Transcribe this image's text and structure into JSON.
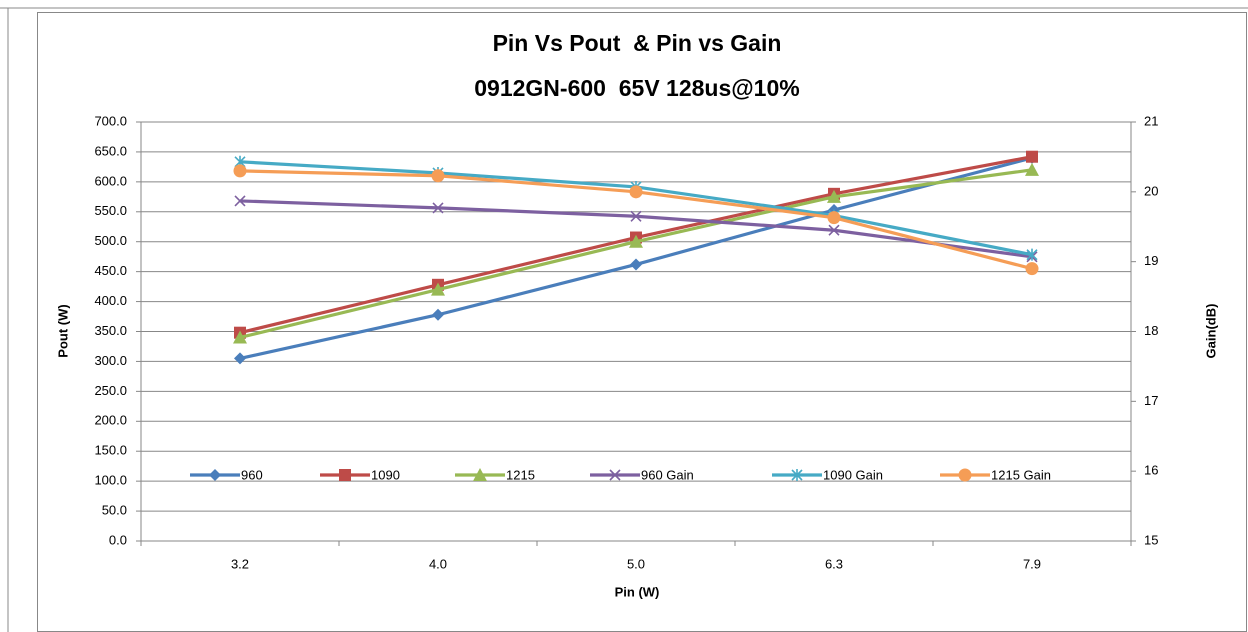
{
  "chart_data": {
    "type": "line",
    "title": "Pin Vs Pout  & Pin vs Gain",
    "subtitle": "0912GN-600  65V 128us@10%",
    "x_label": "Pin (W)",
    "y_label": "Pout (W)",
    "y2_label": "Gain(dB)",
    "categories": [
      "3.2",
      "4.0",
      "5.0",
      "6.3",
      "7.9"
    ],
    "ylim": [
      0,
      700
    ],
    "yticks": [
      {
        "value": 0,
        "label": "0.0"
      },
      {
        "value": 50,
        "label": "50.0"
      },
      {
        "value": 100,
        "label": "100.0"
      },
      {
        "value": 150,
        "label": "150.0"
      },
      {
        "value": 200,
        "label": "200.0"
      },
      {
        "value": 250,
        "label": "250.0"
      },
      {
        "value": 300,
        "label": "300.0"
      },
      {
        "value": 350,
        "label": "350.0"
      },
      {
        "value": 400,
        "label": "400.0"
      },
      {
        "value": 450,
        "label": "450.0"
      },
      {
        "value": 500,
        "label": "500.0"
      },
      {
        "value": 550,
        "label": "550.0"
      },
      {
        "value": 600,
        "label": "600.0"
      },
      {
        "value": 650,
        "label": "650.0"
      },
      {
        "value": 700,
        "label": "700.0"
      }
    ],
    "y2lim": [
      15,
      21
    ],
    "y2ticks": [
      15,
      16,
      17,
      18,
      19,
      20,
      21
    ],
    "grid": true,
    "legend": "inside-bottom",
    "series": [
      {
        "name": "960",
        "color": "#4a7ebb",
        "marker": "diamond",
        "values": [
          305,
          378,
          462,
          553,
          640
        ]
      },
      {
        "name": "1090",
        "color": "#be4b48",
        "marker": "square",
        "values": [
          348,
          428,
          507,
          580,
          642
        ]
      },
      {
        "name": "1215",
        "color": "#98b954",
        "marker": "triangle",
        "values": [
          340,
          420,
          500,
          575,
          620
        ]
      },
      {
        "name": "960 Gain",
        "color": "#7d60a0",
        "marker": "x",
        "axis": "y2",
        "values": [
          19.87,
          19.77,
          19.65,
          19.45,
          19.07
        ]
      },
      {
        "name": "1090 Gain",
        "color": "#46aac5",
        "marker": "star",
        "axis": "y2",
        "values": [
          20.43,
          20.27,
          20.07,
          19.66,
          19.1
        ]
      },
      {
        "name": "1215 Gain",
        "color": "#f59d56",
        "marker": "circle",
        "axis": "y2",
        "values": [
          20.3,
          20.23,
          20.0,
          19.63,
          18.9
        ]
      }
    ]
  }
}
